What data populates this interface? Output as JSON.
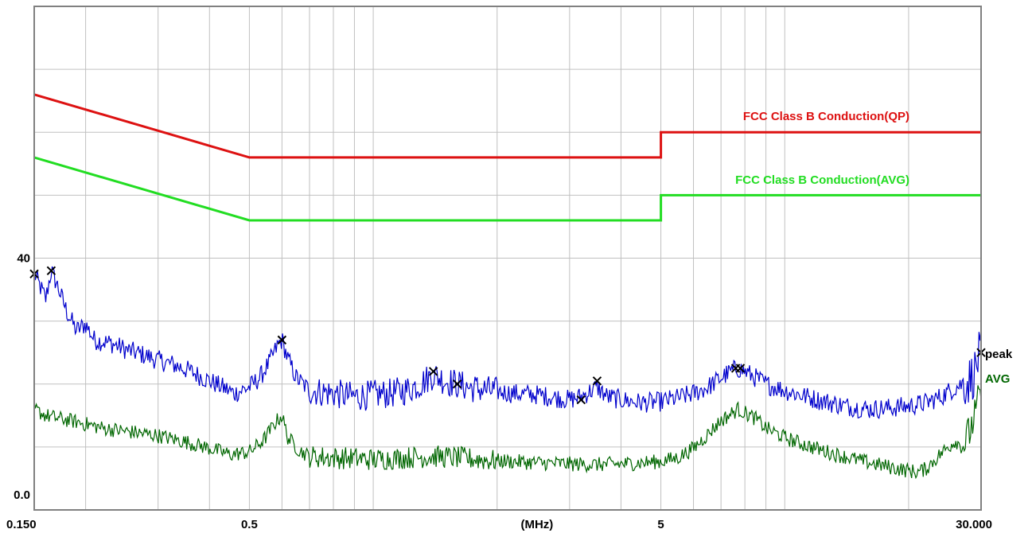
{
  "chart_data": {
    "type": "line",
    "x_scale": "log",
    "x_unit_label": "(MHz)",
    "xlim": [
      0.15,
      30
    ],
    "ylim": [
      0,
      80
    ],
    "grid": true,
    "x_tick_labels": [
      {
        "value": 0.15,
        "label": "0.150"
      },
      {
        "value": 0.5,
        "label": "0.5"
      },
      {
        "value": 5,
        "label": "5"
      },
      {
        "value": 30,
        "label": "30.000"
      }
    ],
    "y_tick_labels": [
      {
        "value": 0,
        "label": "0.0"
      },
      {
        "value": 40,
        "label": "40"
      }
    ],
    "colors": {
      "qp_limit": "#dd1111",
      "avg_limit": "#22dd22",
      "peak": "#0000cc",
      "avg": "#006600",
      "marker": "#000000",
      "grid": "#c0c0c0",
      "frame": "#808080"
    },
    "limits": [
      {
        "name": "FCC Class B Conduction(QP)",
        "color": "#dd1111",
        "points": [
          [
            0.15,
            66
          ],
          [
            0.5,
            56
          ],
          [
            5,
            56
          ],
          [
            5,
            60
          ],
          [
            30,
            60
          ]
        ]
      },
      {
        "name": "FCC Class B Conduction(AVG)",
        "color": "#22dd22",
        "points": [
          [
            0.15,
            56
          ],
          [
            0.5,
            46
          ],
          [
            5,
            46
          ],
          [
            5,
            50
          ],
          [
            30,
            50
          ]
        ]
      }
    ],
    "series": [
      {
        "name": "peak",
        "color": "#0000cc",
        "points": [
          [
            0.15,
            37.5
          ],
          [
            0.155,
            35.5
          ],
          [
            0.16,
            33.5
          ],
          [
            0.165,
            38.0
          ],
          [
            0.17,
            36.0
          ],
          [
            0.18,
            31.5
          ],
          [
            0.19,
            28.5
          ],
          [
            0.2,
            29.5
          ],
          [
            0.21,
            27.0
          ],
          [
            0.23,
            26.5
          ],
          [
            0.25,
            25.5
          ],
          [
            0.28,
            24.5
          ],
          [
            0.3,
            23.8
          ],
          [
            0.33,
            23.0
          ],
          [
            0.36,
            22.0
          ],
          [
            0.4,
            20.5
          ],
          [
            0.43,
            19.5
          ],
          [
            0.46,
            18.5
          ],
          [
            0.5,
            19.5
          ],
          [
            0.53,
            21.0
          ],
          [
            0.56,
            23.5
          ],
          [
            0.59,
            26.5
          ],
          [
            0.6,
            27.0
          ],
          [
            0.62,
            24.0
          ],
          [
            0.65,
            21.0
          ],
          [
            0.7,
            19.0
          ],
          [
            0.8,
            18.5
          ],
          [
            0.9,
            18.0
          ],
          [
            1.0,
            18.3
          ],
          [
            1.1,
            18.5
          ],
          [
            1.2,
            19.0
          ],
          [
            1.3,
            20.0
          ],
          [
            1.4,
            21.5
          ],
          [
            1.5,
            20.5
          ],
          [
            1.6,
            20.0
          ],
          [
            1.7,
            19.5
          ],
          [
            1.9,
            19.0
          ],
          [
            2.2,
            18.5
          ],
          [
            2.5,
            18.3
          ],
          [
            2.8,
            17.8
          ],
          [
            3.0,
            17.5
          ],
          [
            3.2,
            18.0
          ],
          [
            3.4,
            19.0
          ],
          [
            3.5,
            19.5
          ],
          [
            3.7,
            18.0
          ],
          [
            4.0,
            17.5
          ],
          [
            4.5,
            17.0
          ],
          [
            5.0,
            17.2
          ],
          [
            5.5,
            17.8
          ],
          [
            6.0,
            18.5
          ],
          [
            6.5,
            19.5
          ],
          [
            7.0,
            21.0
          ],
          [
            7.5,
            22.2
          ],
          [
            7.7,
            22.5
          ],
          [
            8.0,
            22.0
          ],
          [
            8.5,
            21.0
          ],
          [
            9.0,
            20.0
          ],
          [
            10.0,
            19.0
          ],
          [
            12.0,
            17.5
          ],
          [
            14.0,
            16.5
          ],
          [
            16.0,
            16.0
          ],
          [
            18.0,
            16.2
          ],
          [
            20.0,
            16.5
          ],
          [
            22.0,
            17.0
          ],
          [
            24.0,
            18.0
          ],
          [
            26.0,
            19.5
          ],
          [
            28.0,
            20.5
          ],
          [
            29.0,
            22.0
          ],
          [
            29.5,
            24.0
          ],
          [
            30.0,
            25.0
          ]
        ]
      },
      {
        "name": "AVG",
        "color": "#006600",
        "points": [
          [
            0.15,
            16.0
          ],
          [
            0.16,
            15.0
          ],
          [
            0.17,
            14.6
          ],
          [
            0.19,
            14.0
          ],
          [
            0.22,
            13.0
          ],
          [
            0.25,
            12.5
          ],
          [
            0.3,
            11.8
          ],
          [
            0.35,
            10.8
          ],
          [
            0.4,
            9.8
          ],
          [
            0.45,
            8.8
          ],
          [
            0.5,
            9.2
          ],
          [
            0.54,
            11.0
          ],
          [
            0.58,
            14.0
          ],
          [
            0.6,
            15.0
          ],
          [
            0.62,
            11.5
          ],
          [
            0.66,
            9.5
          ],
          [
            0.7,
            8.5
          ],
          [
            0.8,
            8.3
          ],
          [
            0.9,
            8.2
          ],
          [
            1.0,
            8.0
          ],
          [
            1.2,
            8.3
          ],
          [
            1.4,
            8.5
          ],
          [
            1.6,
            8.3
          ],
          [
            2.0,
            7.8
          ],
          [
            2.5,
            7.5
          ],
          [
            3.0,
            7.3
          ],
          [
            3.5,
            7.2
          ],
          [
            4.0,
            7.3
          ],
          [
            4.5,
            7.5
          ],
          [
            5.0,
            7.7
          ],
          [
            5.5,
            8.3
          ],
          [
            6.0,
            9.8
          ],
          [
            6.5,
            12.0
          ],
          [
            7.0,
            14.2
          ],
          [
            7.7,
            16.0
          ],
          [
            8.5,
            14.5
          ],
          [
            9.0,
            13.0
          ],
          [
            10.0,
            11.5
          ],
          [
            11.0,
            10.5
          ],
          [
            13.0,
            9.0
          ],
          [
            16.0,
            7.5
          ],
          [
            19.0,
            6.5
          ],
          [
            21.0,
            6.0
          ],
          [
            22.0,
            6.5
          ],
          [
            24.0,
            9.0
          ],
          [
            26.0,
            11.0
          ],
          [
            27.0,
            10.0
          ],
          [
            28.0,
            12.0
          ],
          [
            29.0,
            15.0
          ],
          [
            30.0,
            19.0
          ]
        ]
      }
    ],
    "markers": [
      {
        "x": 0.15,
        "y": 37.5
      },
      {
        "x": 0.165,
        "y": 38.0
      },
      {
        "x": 0.6,
        "y": 27.0
      },
      {
        "x": 1.4,
        "y": 22.0
      },
      {
        "x": 1.6,
        "y": 20.0
      },
      {
        "x": 3.2,
        "y": 17.5
      },
      {
        "x": 3.5,
        "y": 20.5
      },
      {
        "x": 7.6,
        "y": 22.5
      },
      {
        "x": 7.8,
        "y": 22.5
      },
      {
        "x": 30.0,
        "y": 25.0
      }
    ]
  }
}
